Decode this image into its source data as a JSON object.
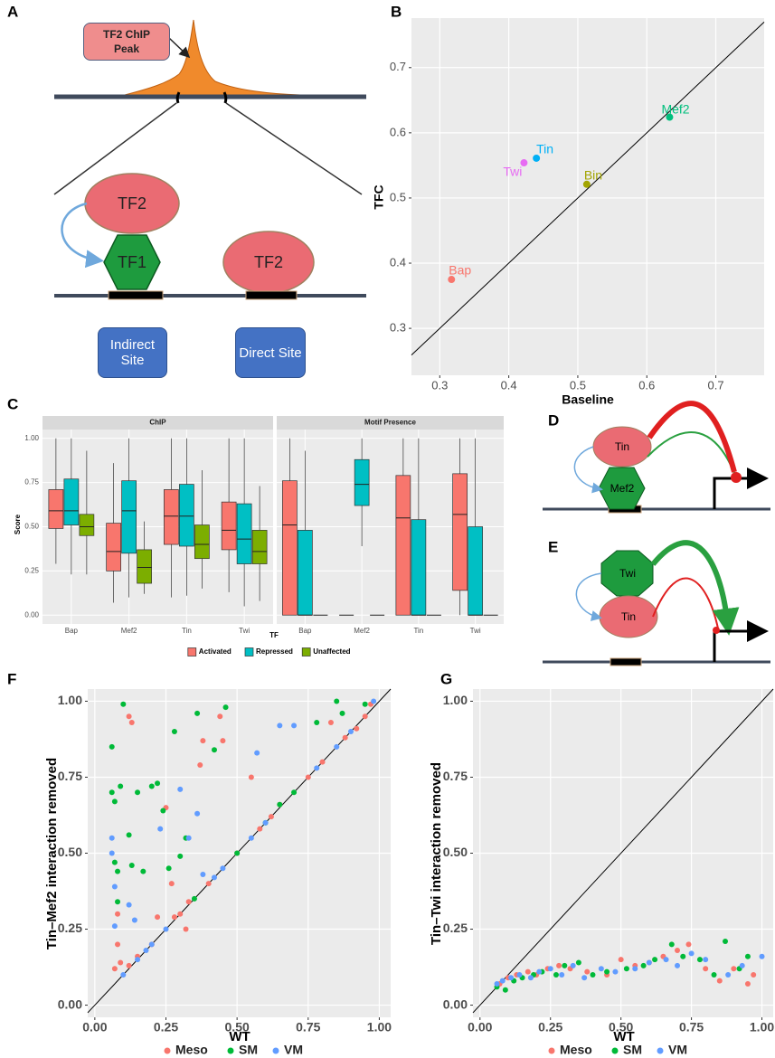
{
  "diagram_a": {
    "panel": "A",
    "peak_label": "TF2 ChIP Peak",
    "tf2_top": "TF2",
    "tf1": "TF1",
    "tf2_direct": "TF2",
    "indirect_site": "Indirect Site",
    "direct_site": "Direct Site"
  },
  "diagram_d": {
    "panel": "D",
    "top": "Tin",
    "bottom": "Mef2"
  },
  "diagram_e": {
    "panel": "E",
    "top": "Twi",
    "bottom": "Tin"
  },
  "chart_data": [
    {
      "panel": "B",
      "type": "scatter",
      "x_label": "Baseline",
      "y_label": "TFC",
      "xlim": [
        0.259,
        0.77
      ],
      "ylim": [
        0.228,
        0.776
      ],
      "xticks": [
        0.3,
        0.4,
        0.5,
        0.6,
        0.7
      ],
      "yticks": [
        0.3,
        0.4,
        0.5,
        0.6,
        0.7
      ],
      "grid": true,
      "diagonal": true,
      "point_labels": true,
      "series": [
        {
          "name": "Bap",
          "color": "#f8766d",
          "x": [
            0.317
          ],
          "y": [
            0.375
          ]
        },
        {
          "name": "Bin",
          "color": "#a3a500",
          "x": [
            0.513
          ],
          "y": [
            0.521
          ]
        },
        {
          "name": "Mef2",
          "color": "#00bf7d",
          "x": [
            0.633
          ],
          "y": [
            0.624
          ]
        },
        {
          "name": "Tin",
          "color": "#00b0f6",
          "x": [
            0.44
          ],
          "y": [
            0.561
          ]
        },
        {
          "name": "Twi",
          "color": "#e76bf3",
          "x": [
            0.422
          ],
          "y": [
            0.554
          ]
        }
      ]
    },
    {
      "panel": "C",
      "type": "box",
      "facets": [
        "ChIP",
        "Motif Presence"
      ],
      "categories": [
        "Bap",
        "Mef2",
        "Tin",
        "Twi"
      ],
      "x_label": "TF",
      "y_label": "Score",
      "ylim": [
        -0.05,
        1.05
      ],
      "yticks": [
        {
          "value": 0,
          "label": "0.00"
        },
        {
          "value": 0.25,
          "label": "0.25"
        },
        {
          "value": 0.5,
          "label": "0.50"
        },
        {
          "value": 0.75,
          "label": "0.75"
        },
        {
          "value": 1,
          "label": "1.00"
        }
      ],
      "grid": true,
      "legend": "bottom",
      "series": [
        {
          "name": "Activated",
          "color": "#f8766d",
          "values": [
            [
              [
                0.29,
                0.49,
                0.59,
                0.71,
                1.0
              ],
              [
                0.07,
                0.25,
                0.36,
                0.52,
                0.86
              ],
              [
                0.1,
                0.4,
                0.56,
                0.71,
                1.0
              ],
              [
                0.13,
                0.37,
                0.48,
                0.64,
                1.0
              ]
            ],
            [
              [
                0,
                0,
                0.51,
                0.76,
                1.0
              ],
              [
                0,
                0,
                0,
                0,
                0
              ],
              [
                0,
                0,
                0.55,
                0.79,
                1.0
              ],
              [
                0,
                0.14,
                0.57,
                0.8,
                1.0
              ]
            ]
          ]
        },
        {
          "name": "Repressed",
          "color": "#00bfc4",
          "values": [
            [
              [
                0.23,
                0.51,
                0.59,
                0.77,
                1.0
              ],
              [
                0.1,
                0.35,
                0.59,
                0.76,
                1.0
              ],
              [
                0.11,
                0.39,
                0.56,
                0.74,
                1.0
              ],
              [
                0.05,
                0.29,
                0.43,
                0.63,
                1.0
              ]
            ],
            [
              [
                0,
                0,
                0,
                0.48,
                0.93
              ],
              [
                0.39,
                0.62,
                0.74,
                0.88,
                1.0
              ],
              [
                0,
                0,
                0,
                0.54,
                1.0
              ],
              [
                0,
                0,
                0,
                0.5,
                1.0
              ]
            ]
          ]
        },
        {
          "name": "Unaffected",
          "color": "#7cae00",
          "values": [
            [
              [
                0.23,
                0.45,
                0.5,
                0.57,
                0.93
              ],
              [
                0.12,
                0.18,
                0.27,
                0.37,
                0.53
              ],
              [
                0.15,
                0.32,
                0.4,
                0.51,
                0.82
              ],
              [
                0.08,
                0.29,
                0.36,
                0.48,
                0.73
              ]
            ],
            [
              [
                0,
                0,
                0,
                0,
                0
              ],
              [
                0,
                0,
                0,
                0,
                0
              ],
              [
                0,
                0,
                0,
                0,
                0
              ],
              [
                0,
                0,
                0,
                0,
                0
              ]
            ]
          ]
        }
      ]
    },
    {
      "panel": "F",
      "type": "scatter",
      "x_label": "WT",
      "y_label": "Tin–Mef2 interaction removed",
      "xlim": [
        -0.025,
        1.04
      ],
      "ylim": [
        -0.04,
        1.04
      ],
      "xticks": [
        {
          "value": 0,
          "label": "0.00"
        },
        {
          "value": 0.25,
          "label": "0.25"
        },
        {
          "value": 0.5,
          "label": "0.50"
        },
        {
          "value": 0.75,
          "label": "0.75"
        },
        {
          "value": 1,
          "label": "1.00"
        }
      ],
      "yticks": [
        {
          "value": 0,
          "label": "0.00"
        },
        {
          "value": 0.25,
          "label": "0.25"
        },
        {
          "value": 0.5,
          "label": "0.50"
        },
        {
          "value": 0.75,
          "label": "0.75"
        },
        {
          "value": 1,
          "label": "1.00"
        }
      ],
      "grid": true,
      "diagonal": true,
      "legend": "bottom",
      "series": [
        {
          "name": "Meso",
          "color": "#f8766d",
          "x": [
            0.07,
            0.08,
            0.08,
            0.09,
            0.12,
            0.13,
            0.12,
            0.15,
            0.2,
            0.22,
            0.25,
            0.27,
            0.28,
            0.3,
            0.32,
            0.33,
            0.37,
            0.38,
            0.4,
            0.44,
            0.45,
            0.5,
            0.55,
            0.58,
            0.62,
            0.65,
            0.75,
            0.8,
            0.83,
            0.88,
            0.92,
            0.95,
            0.97
          ],
          "y": [
            0.12,
            0.2,
            0.3,
            0.14,
            0.95,
            0.93,
            0.13,
            0.16,
            0.2,
            0.29,
            0.65,
            0.4,
            0.29,
            0.3,
            0.25,
            0.34,
            0.79,
            0.87,
            0.4,
            0.95,
            0.87,
            0.5,
            0.75,
            0.58,
            0.62,
            0.66,
            0.75,
            0.8,
            0.93,
            0.88,
            0.91,
            0.95,
            0.99
          ]
        },
        {
          "name": "SM",
          "color": "#00ba38",
          "x": [
            0.06,
            0.06,
            0.07,
            0.07,
            0.08,
            0.08,
            0.09,
            0.1,
            0.12,
            0.13,
            0.15,
            0.17,
            0.2,
            0.22,
            0.24,
            0.26,
            0.28,
            0.3,
            0.32,
            0.35,
            0.36,
            0.42,
            0.46,
            0.5,
            0.6,
            0.65,
            0.7,
            0.78,
            0.85,
            0.87,
            0.95
          ],
          "y": [
            0.85,
            0.7,
            0.67,
            0.47,
            0.44,
            0.34,
            0.72,
            0.99,
            0.56,
            0.46,
            0.7,
            0.44,
            0.72,
            0.73,
            0.64,
            0.45,
            0.9,
            0.49,
            0.55,
            0.35,
            0.96,
            0.84,
            0.98,
            0.5,
            0.6,
            0.66,
            0.7,
            0.93,
            1.0,
            0.96,
            0.99
          ]
        },
        {
          "name": "VM",
          "color": "#619cff",
          "x": [
            0.06,
            0.06,
            0.07,
            0.07,
            0.1,
            0.12,
            0.14,
            0.15,
            0.18,
            0.2,
            0.23,
            0.25,
            0.3,
            0.33,
            0.36,
            0.38,
            0.42,
            0.45,
            0.55,
            0.57,
            0.6,
            0.65,
            0.7,
            0.78,
            0.85,
            0.9,
            0.98
          ],
          "y": [
            0.55,
            0.5,
            0.39,
            0.26,
            0.1,
            0.33,
            0.28,
            0.15,
            0.18,
            0.2,
            0.58,
            0.25,
            0.71,
            0.55,
            0.63,
            0.43,
            0.42,
            0.45,
            0.55,
            0.83,
            0.6,
            0.92,
            0.92,
            0.78,
            0.85,
            0.9,
            1.0
          ]
        }
      ]
    },
    {
      "panel": "G",
      "type": "scatter",
      "x_label": "WT",
      "y_label": "Tin–Twi interaction removed",
      "xlim": [
        -0.025,
        1.04
      ],
      "ylim": [
        -0.04,
        1.04
      ],
      "xticks": [
        {
          "value": 0,
          "label": "0.00"
        },
        {
          "value": 0.25,
          "label": "0.25"
        },
        {
          "value": 0.5,
          "label": "0.50"
        },
        {
          "value": 0.75,
          "label": "0.75"
        },
        {
          "value": 1,
          "label": "1.00"
        }
      ],
      "yticks": [
        {
          "value": 0,
          "label": "0.00"
        },
        {
          "value": 0.25,
          "label": "0.25"
        },
        {
          "value": 0.5,
          "label": "0.50"
        },
        {
          "value": 0.75,
          "label": "0.75"
        },
        {
          "value": 1,
          "label": "1.00"
        }
      ],
      "grid": true,
      "diagonal": true,
      "legend": "bottom",
      "series": [
        {
          "name": "Meso",
          "color": "#f8766d",
          "x": [
            0.07,
            0.1,
            0.13,
            0.17,
            0.2,
            0.24,
            0.28,
            0.32,
            0.38,
            0.45,
            0.5,
            0.55,
            0.6,
            0.65,
            0.7,
            0.74,
            0.8,
            0.85,
            0.9,
            0.95,
            0.97
          ],
          "y": [
            0.07,
            0.09,
            0.1,
            0.11,
            0.1,
            0.12,
            0.13,
            0.12,
            0.11,
            0.1,
            0.15,
            0.13,
            0.14,
            0.16,
            0.18,
            0.2,
            0.12,
            0.08,
            0.12,
            0.07,
            0.1
          ]
        },
        {
          "name": "SM",
          "color": "#00ba38",
          "x": [
            0.06,
            0.09,
            0.12,
            0.15,
            0.19,
            0.22,
            0.27,
            0.3,
            0.35,
            0.4,
            0.45,
            0.52,
            0.58,
            0.62,
            0.68,
            0.72,
            0.78,
            0.83,
            0.87,
            0.92,
            0.95
          ],
          "y": [
            0.06,
            0.05,
            0.08,
            0.09,
            0.1,
            0.11,
            0.1,
            0.13,
            0.14,
            0.1,
            0.11,
            0.12,
            0.13,
            0.15,
            0.2,
            0.16,
            0.15,
            0.1,
            0.21,
            0.12,
            0.16
          ]
        },
        {
          "name": "VM",
          "color": "#619cff",
          "x": [
            0.06,
            0.08,
            0.11,
            0.14,
            0.18,
            0.21,
            0.25,
            0.29,
            0.33,
            0.37,
            0.43,
            0.48,
            0.55,
            0.6,
            0.66,
            0.7,
            0.75,
            0.8,
            0.88,
            0.93,
            1.0
          ],
          "y": [
            0.07,
            0.08,
            0.09,
            0.1,
            0.09,
            0.11,
            0.12,
            0.1,
            0.13,
            0.09,
            0.12,
            0.11,
            0.12,
            0.14,
            0.15,
            0.13,
            0.17,
            0.15,
            0.1,
            0.13,
            0.16
          ]
        }
      ]
    }
  ]
}
